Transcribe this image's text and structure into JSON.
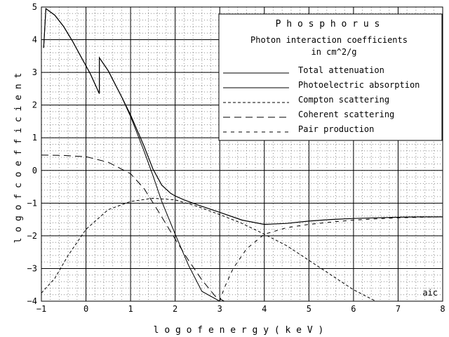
{
  "chart_data": {
    "type": "line",
    "title": "P h o s p h o r u s",
    "subtitle_line1": "Photon interaction coefficients",
    "subtitle_line2": "in cm^2/g",
    "xlabel": "l o g   o f   e n e r g y   ( k e V )",
    "ylabel": "l o g   o f   c o e f f i c i e n t",
    "annotation": "aic",
    "xlim": [
      -1,
      8
    ],
    "ylim": [
      -4,
      5
    ],
    "x_ticks": [
      -1,
      0,
      1,
      2,
      3,
      4,
      5,
      6,
      7,
      8
    ],
    "y_ticks": [
      -4,
      -3,
      -2,
      -1,
      0,
      1,
      2,
      3,
      4,
      5
    ],
    "x_tick_labels": [
      "−1",
      "0",
      "1",
      "2",
      "3",
      "4",
      "5",
      "6",
      "7",
      "8"
    ],
    "y_tick_labels": [
      "−4",
      "−3",
      "−2",
      "−1",
      "0",
      "1",
      "2",
      "3",
      "4",
      "5"
    ],
    "grid": true,
    "legend_position": "top-right",
    "series": [
      {
        "name": "Total attenuation",
        "dash": "solid",
        "x": [
          -0.95,
          -0.9,
          -0.7,
          -0.5,
          -0.3,
          -0.1,
          0.1,
          0.3,
          0.3,
          0.5,
          0.8,
          1.0,
          1.3,
          1.5,
          1.7,
          1.9,
          2.0,
          2.2,
          2.5,
          3.0,
          3.5,
          4.0,
          4.5,
          5.0,
          5.5,
          6.0,
          6.5,
          7.0,
          7.5,
          8.0
        ],
        "y": [
          3.75,
          4.95,
          4.75,
          4.4,
          3.95,
          3.45,
          2.95,
          2.35,
          3.45,
          3.05,
          2.25,
          1.7,
          0.75,
          0.05,
          -0.45,
          -0.7,
          -0.78,
          -0.9,
          -1.05,
          -1.28,
          -1.52,
          -1.65,
          -1.62,
          -1.55,
          -1.5,
          -1.47,
          -1.45,
          -1.43,
          -1.42,
          -1.42
        ]
      },
      {
        "name": "Photoelectric absorption",
        "dash": "solid-thin",
        "x": [
          -0.95,
          -0.9,
          -0.7,
          -0.5,
          -0.3,
          -0.1,
          0.1,
          0.3,
          0.3,
          0.5,
          0.8,
          1.0,
          1.3,
          1.5,
          1.7,
          2.0,
          2.3,
          2.6,
          3.0
        ],
        "y": [
          3.75,
          4.95,
          4.75,
          4.4,
          3.95,
          3.45,
          2.95,
          2.35,
          3.45,
          3.05,
          2.25,
          1.65,
          0.6,
          -0.15,
          -0.95,
          -1.95,
          -2.9,
          -3.7,
          -4.0
        ]
      },
      {
        "name": "Compton scattering",
        "dash": "4,3",
        "x": [
          -1.0,
          -0.7,
          -0.4,
          0.0,
          0.5,
          1.0,
          1.5,
          2.0,
          2.5,
          3.0,
          3.5,
          4.0,
          4.5,
          5.0,
          5.5,
          6.0,
          6.5
        ],
        "y": [
          -3.75,
          -3.3,
          -2.6,
          -1.8,
          -1.2,
          -0.95,
          -0.85,
          -0.9,
          -1.1,
          -1.35,
          -1.62,
          -1.95,
          -2.3,
          -2.75,
          -3.2,
          -3.65,
          -4.0
        ]
      },
      {
        "name": "Coherent scattering",
        "dash": "10,6",
        "x": [
          -1.0,
          -0.5,
          0.0,
          0.5,
          1.0,
          1.3,
          1.6,
          2.0,
          2.3,
          2.6,
          2.9,
          3.1
        ],
        "y": [
          0.47,
          0.46,
          0.42,
          0.25,
          -0.1,
          -0.55,
          -1.2,
          -2.1,
          -2.75,
          -3.35,
          -3.85,
          -4.0
        ]
      },
      {
        "name": "Pair production",
        "dash": "5,6",
        "x": [
          3.0,
          3.1,
          3.3,
          3.6,
          4.0,
          4.5,
          5.0,
          5.5,
          6.0,
          6.5,
          7.0,
          7.5,
          8.0
        ],
        "y": [
          -4.0,
          -3.6,
          -3.0,
          -2.4,
          -1.95,
          -1.75,
          -1.65,
          -1.58,
          -1.52,
          -1.48,
          -1.45,
          -1.43,
          -1.42
        ]
      }
    ]
  }
}
